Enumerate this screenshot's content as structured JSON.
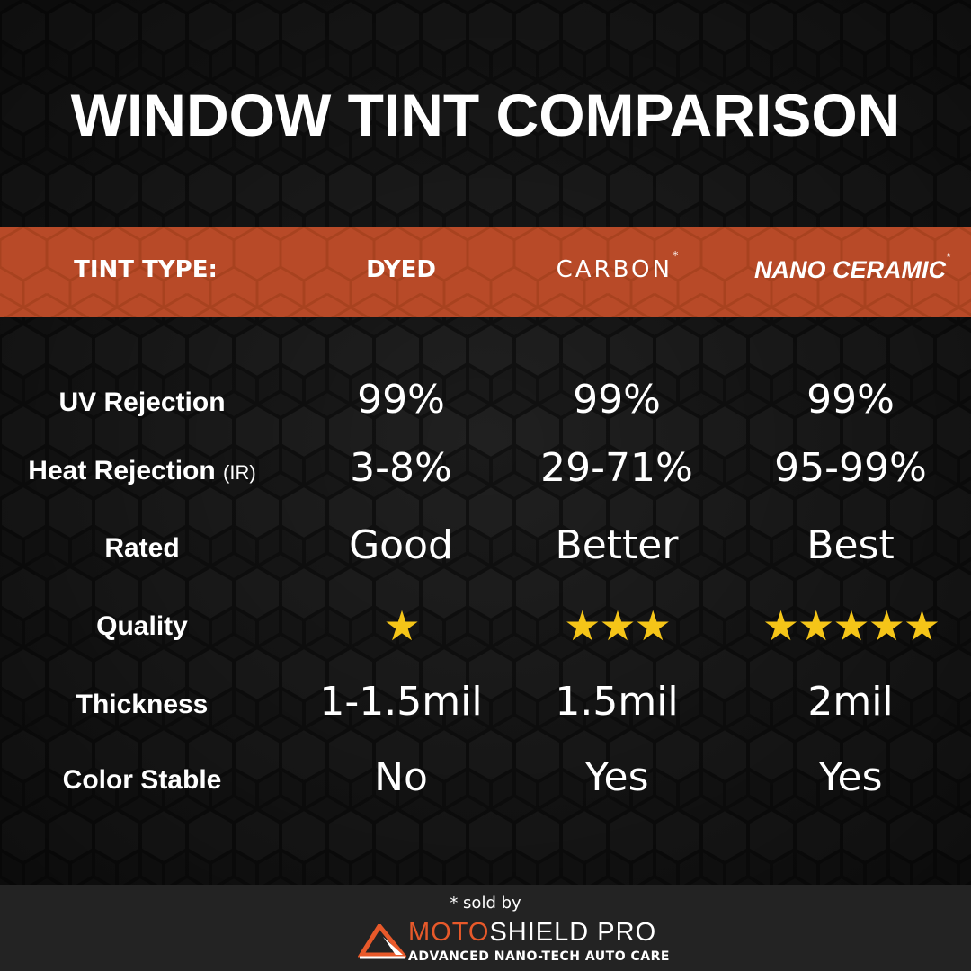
{
  "title": "WINDOW TINT COMPARISON",
  "colors": {
    "band": "#b84a28",
    "star": "#f5c518",
    "brand_orange": "#e8592a",
    "background": "#1a1a1a"
  },
  "header": {
    "label": "TINT TYPE:",
    "columns": [
      {
        "name": "DYED",
        "asterisk": ""
      },
      {
        "name": "CARBON",
        "asterisk": "*"
      },
      {
        "name": "NANO CERAMIC",
        "asterisk": "*"
      }
    ]
  },
  "rows": [
    {
      "label": "UV Rejection",
      "note": "",
      "values": [
        "99%",
        "99%",
        "99%"
      ]
    },
    {
      "label": "Heat Rejection",
      "note": "(IR)",
      "values": [
        "3-8%",
        "29-71%",
        "95-99%"
      ]
    },
    {
      "label": "Rated",
      "note": "",
      "values": [
        "Good",
        "Better",
        "Best"
      ]
    },
    {
      "label": "Quality",
      "note": "",
      "stars": [
        1,
        3,
        5
      ],
      "values": [
        "★",
        "★★★",
        "★★★★★"
      ]
    },
    {
      "label": "Thickness",
      "note": "",
      "values": [
        "1-1.5mil",
        "1.5mil",
        "2mil"
      ]
    },
    {
      "label": "Color Stable",
      "note": "",
      "values": [
        "No",
        "Yes",
        "Yes"
      ]
    }
  ],
  "footer": {
    "sold_by": "* sold by",
    "brand_part1": "MOTO",
    "brand_part2": "SHIELD PRO",
    "tagline": "ADVANCED NANO-TECH AUTO CARE",
    "logo_icon": "triangle-logo-icon"
  }
}
